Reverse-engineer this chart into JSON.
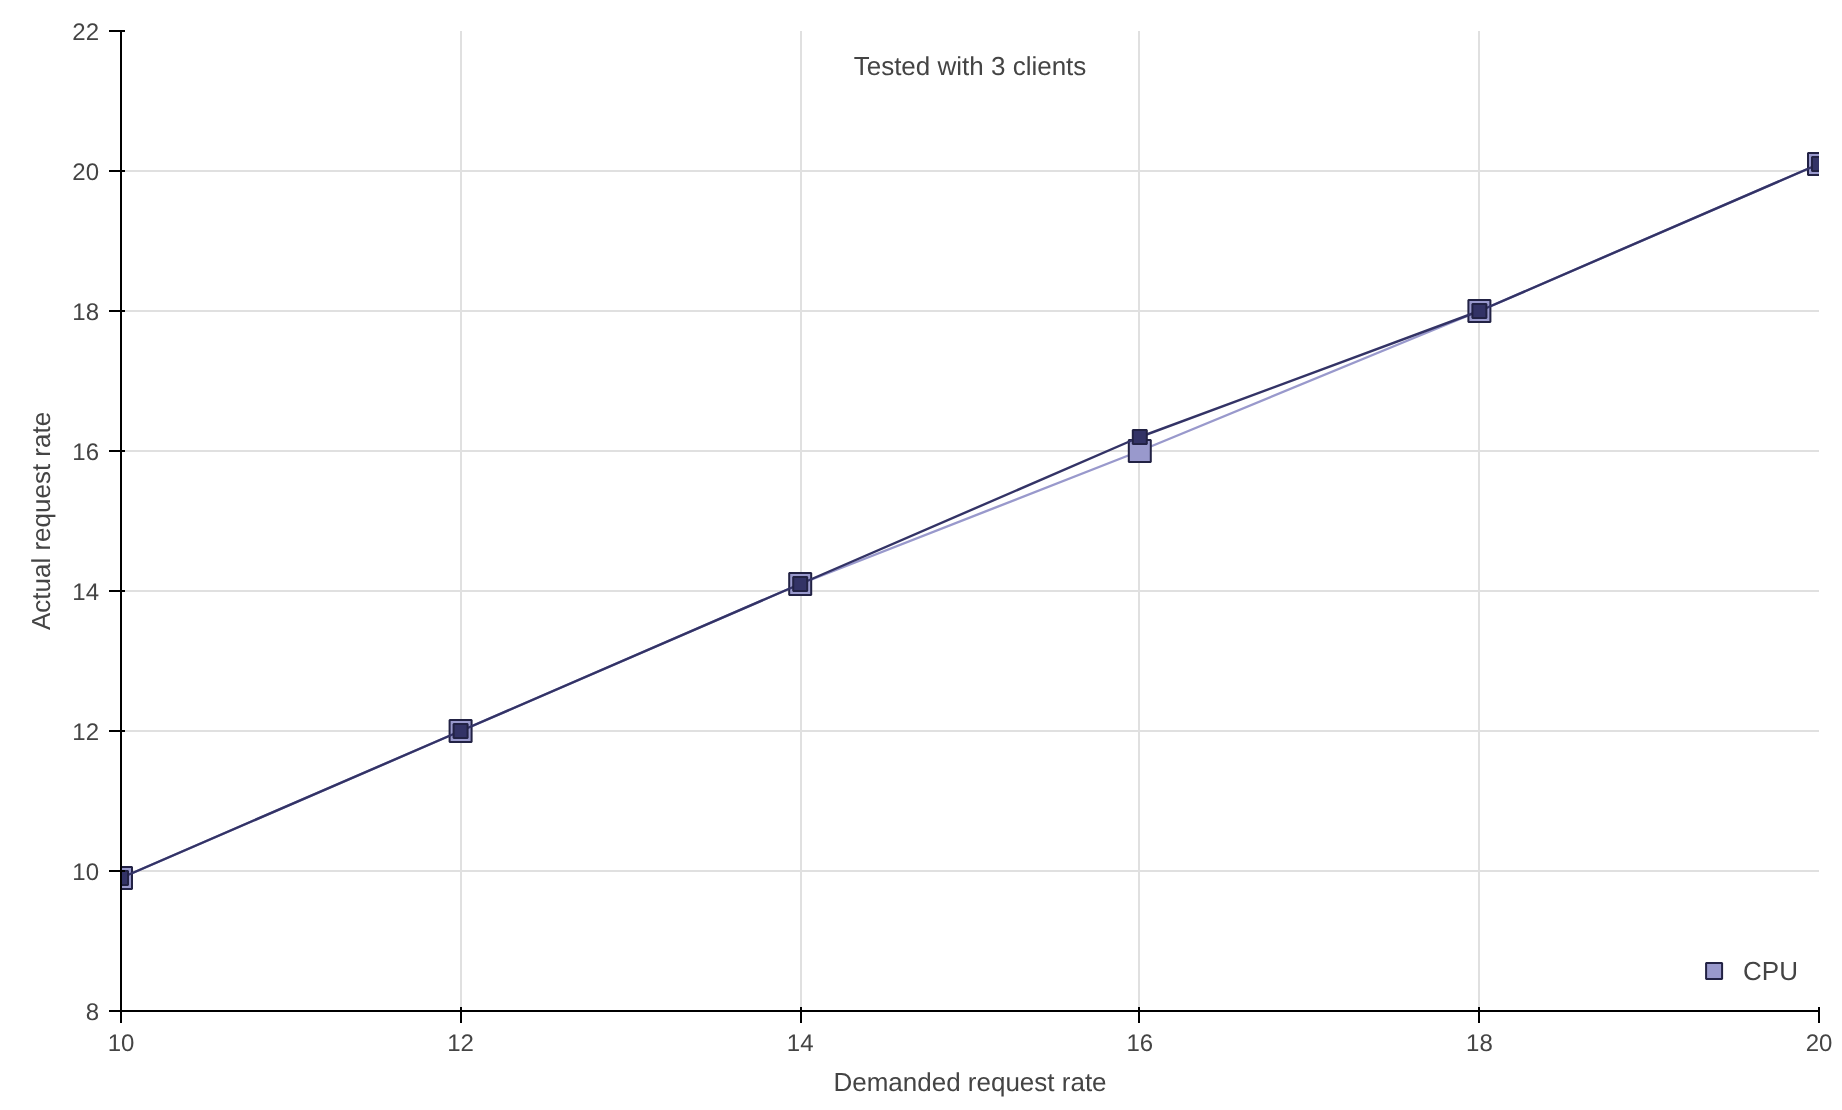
{
  "chart_data": {
    "type": "line",
    "xlabel": "Demanded request rate",
    "ylabel": "Actual request rate",
    "annotations": [
      "Tested with 3 clients"
    ],
    "x": [
      10,
      12,
      14,
      16,
      18,
      20
    ],
    "series": [
      {
        "name": "CPU",
        "color": "#9999cc",
        "values": [
          9.9,
          12,
          14.1,
          16,
          18,
          20.1
        ]
      },
      {
        "color": "#333366",
        "values": [
          9.9,
          12,
          14.1,
          16.2,
          18,
          20.1
        ]
      }
    ],
    "xlim": [
      10,
      20
    ],
    "xticks": [
      10,
      12,
      14,
      16,
      18,
      20
    ],
    "ylim": [
      8,
      22
    ],
    "yticks": [
      8,
      10,
      12,
      14,
      16,
      18,
      20,
      22
    ],
    "grid": true,
    "legend": "bottom right",
    "marker": "square",
    "line_style": "solid"
  }
}
